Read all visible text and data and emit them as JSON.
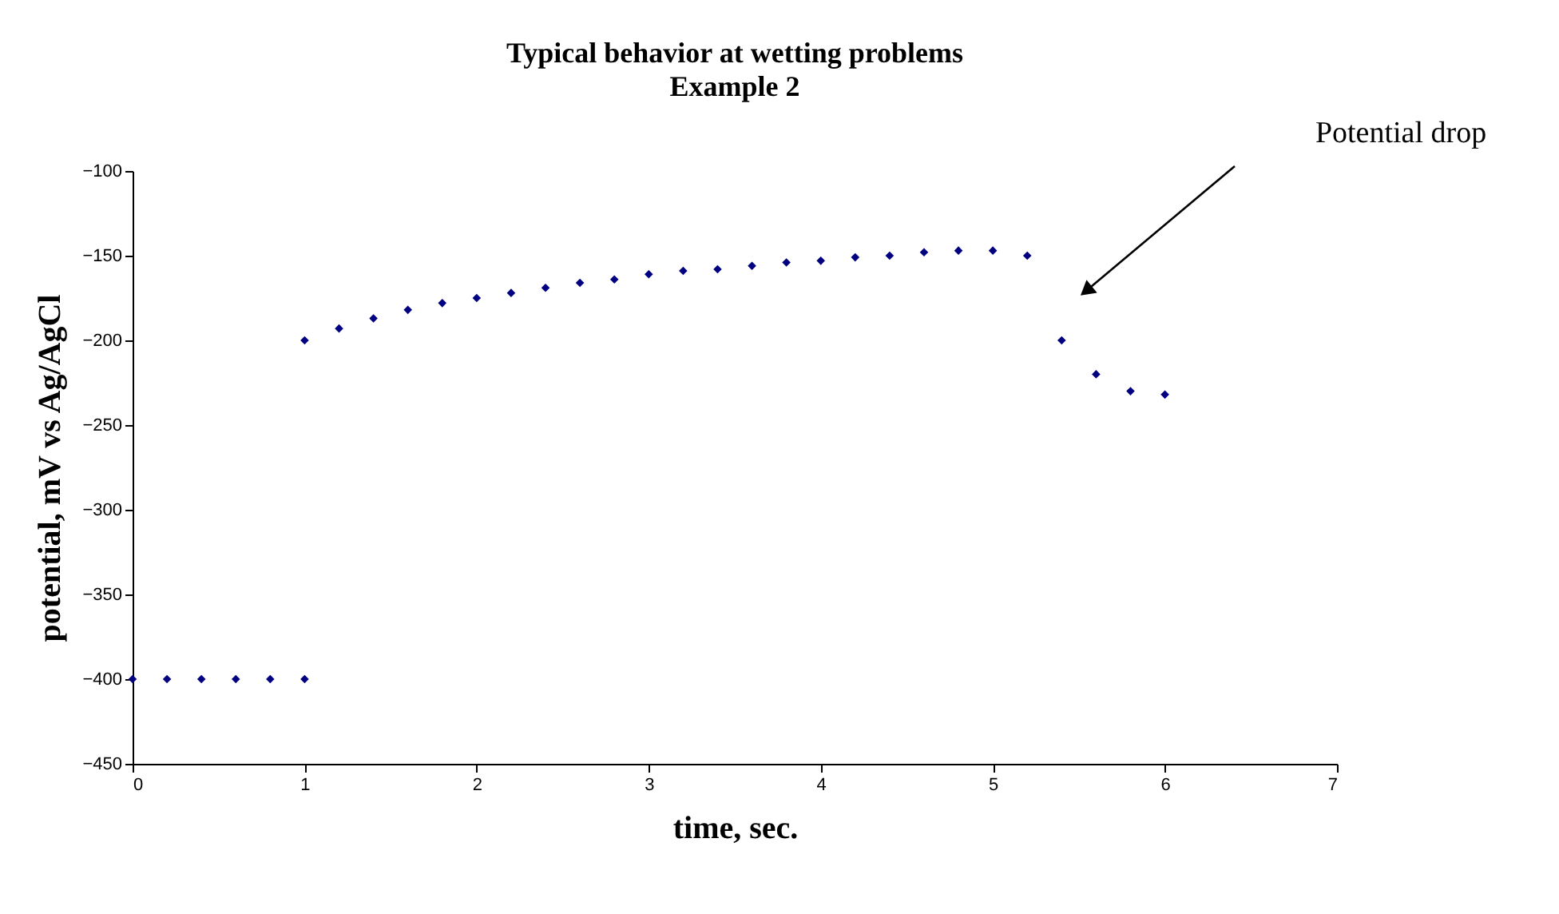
{
  "chart_data": {
    "type": "scatter",
    "title": "Typical behavior at wetting problems",
    "subtitle": "Example 2",
    "xlabel": "time, sec.",
    "ylabel": "potential, mV vs Ag/AgCl",
    "x": [
      0,
      0.2,
      0.4,
      0.6,
      0.8,
      1.0,
      1.0,
      1.2,
      1.4,
      1.6,
      1.8,
      2.0,
      2.2,
      2.4,
      2.6,
      2.8,
      3.0,
      3.2,
      3.4,
      3.6,
      3.8,
      4.0,
      4.2,
      4.4,
      4.6,
      4.8,
      5.0,
      5.2,
      5.4,
      5.6,
      5.8,
      6.0
    ],
    "series": [
      {
        "color": "#000080",
        "values": [
          -400,
          -400,
          -400,
          -400,
          -400,
          -400,
          -200,
          -193,
          -187,
          -182,
          -178,
          -175,
          -172,
          -169,
          -166,
          -164,
          -161,
          -159,
          -158,
          -156,
          -154,
          -153,
          -151,
          -150,
          -148,
          -147,
          -147,
          -150,
          -200,
          -220,
          -230,
          -232
        ]
      }
    ],
    "xlim": [
      0,
      7
    ],
    "xticks": [
      0,
      1,
      2,
      3,
      4,
      5,
      6,
      7
    ],
    "ylim": [
      -450,
      -100
    ],
    "yticks": [
      -450,
      -400,
      -350,
      -300,
      -250,
      -200,
      -150,
      -100
    ],
    "marker": "diamond",
    "grid": false,
    "annotations": [
      "Potential drop"
    ]
  }
}
